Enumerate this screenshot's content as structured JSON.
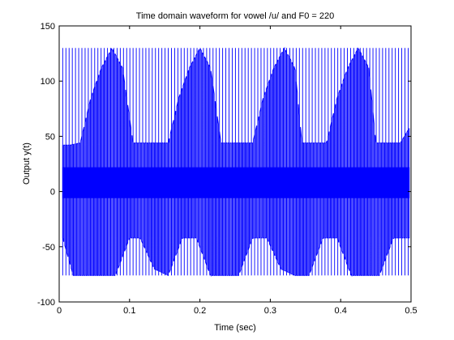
{
  "chart_data": {
    "type": "line",
    "title": "Time domain waveform for vowel /u/ and F0 = 220",
    "xlabel": "Time (sec)",
    "ylabel": "Output y(t)",
    "xlim": [
      0,
      0.5
    ],
    "ylim": [
      -100,
      150
    ],
    "x_ticks": [
      0,
      0.1,
      0.2,
      0.3,
      0.4,
      0.5
    ],
    "x_tick_labels": [
      "0",
      "0.1",
      "0.2",
      "0.3",
      "0.4",
      "0.5"
    ],
    "y_ticks": [
      -100,
      -50,
      0,
      50,
      100,
      150
    ],
    "y_tick_labels": [
      "-100",
      "-50",
      "0",
      "50",
      "100",
      "150"
    ],
    "grid": false,
    "legend": "none",
    "series": [
      {
        "color": "#0000ff",
        "f0_hz": 220,
        "x_start": 0.005,
        "x_end": 0.498,
        "upper_envelope": {
          "x": [
            0.005,
            0.015,
            0.03,
            0.045,
            0.06,
            0.075,
            0.09,
            0.105,
            0.115,
            0.125,
            0.14,
            0.155,
            0.17,
            0.185,
            0.2,
            0.215,
            0.23,
            0.24,
            0.25,
            0.26,
            0.275,
            0.29,
            0.305,
            0.32,
            0.335,
            0.345,
            0.355,
            0.365,
            0.38,
            0.395,
            0.41,
            0.425,
            0.44,
            0.45,
            0.46,
            0.47,
            0.485,
            0.498
          ],
          "y": [
            42,
            42,
            44,
            85,
            112,
            130,
            112,
            44,
            44,
            44,
            44,
            44,
            85,
            112,
            130,
            112,
            44,
            44,
            44,
            44,
            44,
            85,
            112,
            130,
            112,
            44,
            44,
            44,
            44,
            85,
            112,
            130,
            112,
            44,
            44,
            44,
            44,
            58
          ]
        },
        "lower_envelope": {
          "x": [
            0.005,
            0.02,
            0.04,
            0.06,
            0.08,
            0.1,
            0.115,
            0.135,
            0.155,
            0.175,
            0.195,
            0.215,
            0.235,
            0.255,
            0.275,
            0.295,
            0.315,
            0.335,
            0.355,
            0.375,
            0.395,
            0.415,
            0.435,
            0.455,
            0.475,
            0.498
          ],
          "y": [
            -42,
            -76,
            -76,
            -76,
            -76,
            -42,
            -42,
            -70,
            -76,
            -42,
            -42,
            -76,
            -76,
            -76,
            -42,
            -42,
            -70,
            -76,
            -76,
            -42,
            -42,
            -76,
            -76,
            -76,
            -42,
            -42
          ]
        },
        "pulse_peak": 130,
        "pulse_trough": -76
      }
    ]
  }
}
